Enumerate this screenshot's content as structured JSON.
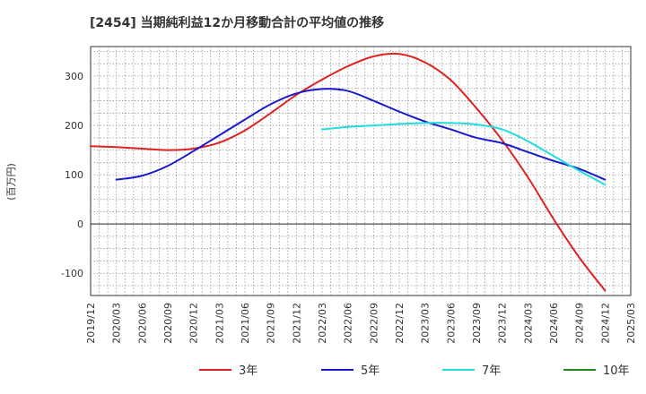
{
  "chart_data": {
    "type": "line",
    "title": "[2454]  当期純利益12か月移動合計の平均値の推移",
    "ylabel": "(百万円)",
    "xlabel": "",
    "ylim": [
      -145,
      360
    ],
    "yticks": [
      -100,
      0,
      100,
      200,
      300
    ],
    "grid": true,
    "legend_position": "bottom",
    "x_ticks": [
      "2019/12",
      "2020/03",
      "2020/06",
      "2020/09",
      "2020/12",
      "2021/03",
      "2021/06",
      "2021/09",
      "2021/12",
      "2022/03",
      "2022/06",
      "2022/09",
      "2022/12",
      "2023/03",
      "2023/06",
      "2023/09",
      "2023/12",
      "2024/03",
      "2024/06",
      "2024/09",
      "2024/12",
      "2025/03"
    ],
    "series": [
      {
        "name": "3年",
        "color": "#dd2222",
        "x": [
          "2019/12",
          "2020/03",
          "2020/06",
          "2020/09",
          "2020/12",
          "2021/03",
          "2021/06",
          "2021/09",
          "2021/12",
          "2022/03",
          "2022/06",
          "2022/09",
          "2022/12",
          "2023/03",
          "2023/06",
          "2023/09",
          "2023/12",
          "2024/03",
          "2024/06",
          "2024/09",
          "2024/12"
        ],
        "values": [
          158,
          156,
          153,
          150,
          153,
          165,
          190,
          225,
          262,
          293,
          320,
          340,
          345,
          328,
          292,
          235,
          170,
          95,
          10,
          -68,
          -135
        ]
      },
      {
        "name": "5年",
        "color": "#1a1acc",
        "x": [
          "2020/03",
          "2020/06",
          "2020/09",
          "2020/12",
          "2021/03",
          "2021/06",
          "2021/09",
          "2021/12",
          "2022/03",
          "2022/06",
          "2022/09",
          "2022/12",
          "2023/03",
          "2023/06",
          "2023/09",
          "2023/12",
          "2024/03",
          "2024/06",
          "2024/09",
          "2024/12"
        ],
        "values": [
          90,
          98,
          118,
          148,
          180,
          212,
          243,
          265,
          274,
          270,
          250,
          228,
          208,
          192,
          175,
          164,
          146,
          128,
          112,
          90
        ]
      },
      {
        "name": "7年",
        "color": "#22dddd",
        "x": [
          "2022/03",
          "2022/06",
          "2022/09",
          "2022/12",
          "2023/03",
          "2023/06",
          "2023/09",
          "2023/12",
          "2024/03",
          "2024/06",
          "2024/09",
          "2024/12"
        ],
        "values": [
          192,
          197,
          200,
          203,
          205,
          205,
          202,
          192,
          168,
          138,
          108,
          80
        ]
      },
      {
        "name": "10年",
        "color": "#228822",
        "x": [],
        "values": []
      }
    ]
  }
}
